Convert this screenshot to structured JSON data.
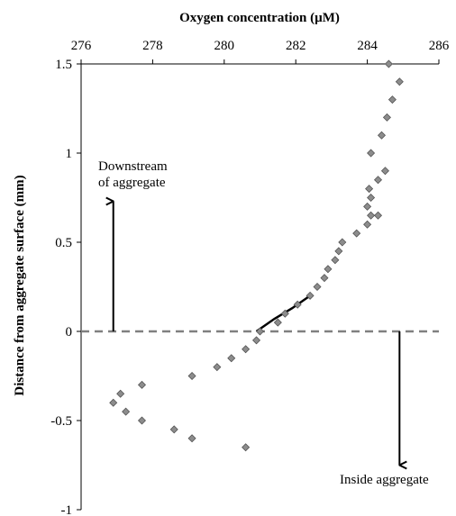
{
  "chart_data": {
    "type": "scatter",
    "xlabel": "Oxygen concentration (µM)",
    "ylabel": "Distance from aggregate surface (mm)",
    "xlim": [
      276,
      286
    ],
    "ylim": [
      -1,
      1.5
    ],
    "x_ticks": [
      "276",
      "278",
      "280",
      "282",
      "284",
      "286"
    ],
    "y_ticks": [
      "-1",
      "-0.5",
      "0",
      "0.5",
      "1",
      "1.5"
    ],
    "x_axis_position": "top",
    "grid": false,
    "legend": "none",
    "series": [
      {
        "marker": "diamond",
        "color": "#8c8c8c",
        "points": [
          {
            "x": 284.6,
            "y": 1.5
          },
          {
            "x": 284.9,
            "y": 1.4
          },
          {
            "x": 284.7,
            "y": 1.3
          },
          {
            "x": 284.55,
            "y": 1.2
          },
          {
            "x": 284.4,
            "y": 1.1
          },
          {
            "x": 284.1,
            "y": 1.0
          },
          {
            "x": 284.5,
            "y": 0.9
          },
          {
            "x": 284.3,
            "y": 0.85
          },
          {
            "x": 284.05,
            "y": 0.8
          },
          {
            "x": 284.1,
            "y": 0.75
          },
          {
            "x": 284.0,
            "y": 0.7
          },
          {
            "x": 284.1,
            "y": 0.65
          },
          {
            "x": 284.3,
            "y": 0.65
          },
          {
            "x": 284.0,
            "y": 0.6
          },
          {
            "x": 283.7,
            "y": 0.55
          },
          {
            "x": 283.3,
            "y": 0.5
          },
          {
            "x": 283.2,
            "y": 0.45
          },
          {
            "x": 283.1,
            "y": 0.4
          },
          {
            "x": 282.9,
            "y": 0.35
          },
          {
            "x": 282.8,
            "y": 0.3
          },
          {
            "x": 282.6,
            "y": 0.25
          },
          {
            "x": 282.4,
            "y": 0.2
          },
          {
            "x": 282.05,
            "y": 0.15
          },
          {
            "x": 281.7,
            "y": 0.1
          },
          {
            "x": 281.5,
            "y": 0.05
          },
          {
            "x": 281.0,
            "y": 0.0
          },
          {
            "x": 280.9,
            "y": -0.05
          },
          {
            "x": 280.6,
            "y": -0.1
          },
          {
            "x": 280.2,
            "y": -0.15
          },
          {
            "x": 279.8,
            "y": -0.2
          },
          {
            "x": 279.1,
            "y": -0.25
          },
          {
            "x": 277.7,
            "y": -0.3
          },
          {
            "x": 277.1,
            "y": -0.35
          },
          {
            "x": 276.9,
            "y": -0.4
          },
          {
            "x": 277.25,
            "y": -0.45
          },
          {
            "x": 277.7,
            "y": -0.5
          },
          {
            "x": 278.6,
            "y": -0.55
          },
          {
            "x": 279.1,
            "y": -0.6
          },
          {
            "x": 280.6,
            "y": -0.65
          }
        ]
      }
    ],
    "fit_line": {
      "color": "#000000",
      "points": [
        [
          280.9,
          0.0
        ],
        [
          281.4,
          0.07
        ],
        [
          281.9,
          0.13
        ],
        [
          282.4,
          0.2
        ]
      ]
    },
    "reference_line": {
      "y": 0,
      "style": "dashed",
      "color": "#808080"
    },
    "annotations": [
      {
        "text_lines": [
          "Downstream",
          "of aggregate"
        ],
        "arrow": {
          "x": 276.9,
          "from_y": 0,
          "to_y": 0.73
        }
      },
      {
        "text_lines": [
          "Inside aggregate"
        ],
        "arrow": {
          "x": 284.9,
          "from_y": 0,
          "to_y": -0.75
        }
      }
    ]
  }
}
